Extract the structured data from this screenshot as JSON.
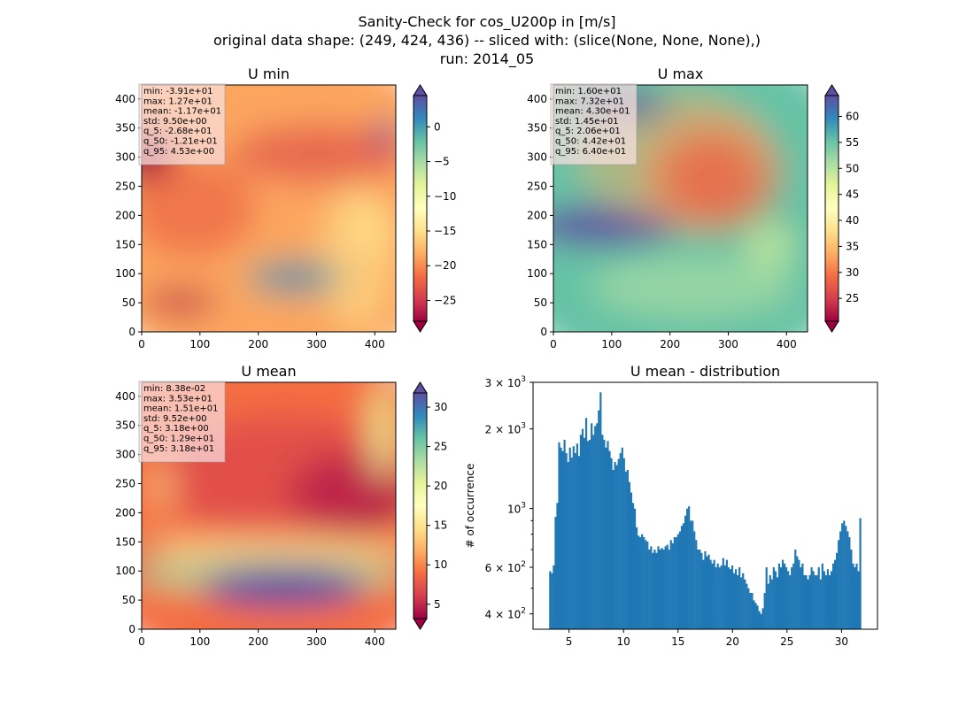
{
  "figure": {
    "title_lines": [
      "Sanity-Check for cos_U200p in [m/s]",
      "original data shape: (249, 424, 436) -- sliced with: (slice(None, None, None),)",
      "run: 2014_05"
    ]
  },
  "chart_data": [
    {
      "type": "heatmap",
      "title": "U min",
      "xlim": [
        0,
        436
      ],
      "ylim": [
        0,
        424
      ],
      "xticks": [
        "0",
        "100",
        "200",
        "300",
        "400"
      ],
      "yticks": [
        "0",
        "50",
        "100",
        "150",
        "200",
        "250",
        "300",
        "350",
        "400"
      ],
      "colormap": "Spectral",
      "colorbar": {
        "range": [
          -28,
          4.5
        ],
        "ticks": [
          "-25",
          "-20",
          "-15",
          "-10",
          "-5",
          "0"
        ],
        "extend": "both"
      },
      "stats": [
        "min: -3.91e+01",
        "max: 1.27e+01",
        "mean: -1.17e+01",
        "std: 9.50e+00",
        "q_5: -2.68e+01",
        "q_50: -1.21e+01",
        "q_95: 4.53e+00"
      ]
    },
    {
      "type": "heatmap",
      "title": "U max",
      "xlim": [
        0,
        436
      ],
      "ylim": [
        0,
        424
      ],
      "xticks": [
        "0",
        "100",
        "200",
        "300",
        "400"
      ],
      "yticks": [
        "0",
        "50",
        "100",
        "150",
        "200",
        "250",
        "300",
        "350",
        "400"
      ],
      "colormap": "Spectral",
      "colorbar": {
        "range": [
          20.6,
          64
        ],
        "ticks": [
          "25",
          "30",
          "35",
          "40",
          "45",
          "50",
          "55",
          "60"
        ],
        "extend": "both"
      },
      "stats": [
        "min: 1.60e+01",
        "max: 7.32e+01",
        "mean: 4.30e+01",
        "std: 1.45e+01",
        "q_5: 2.06e+01",
        "q_50: 4.42e+01",
        "q_95: 6.40e+01"
      ]
    },
    {
      "type": "heatmap",
      "title": "U mean",
      "xlim": [
        0,
        436
      ],
      "ylim": [
        0,
        424
      ],
      "xticks": [
        "0",
        "100",
        "200",
        "300",
        "400"
      ],
      "yticks": [
        "0",
        "50",
        "100",
        "150",
        "200",
        "250",
        "300",
        "350",
        "400"
      ],
      "colormap": "Spectral",
      "colorbar": {
        "range": [
          3.18,
          31.8
        ],
        "ticks": [
          "5",
          "10",
          "15",
          "20",
          "25",
          "30"
        ],
        "extend": "both"
      },
      "stats": [
        "min: 8.38e-02",
        "max: 3.53e+01",
        "mean: 1.51e+01",
        "std: 9.52e+00",
        "q_5: 3.18e+00",
        "q_50: 1.29e+01",
        "q_95: 3.18e+01"
      ]
    },
    {
      "type": "bar",
      "title": "U mean - distribution",
      "ylabel": "# of occurrence",
      "xlabel": "",
      "xlim": [
        1.7,
        33.3
      ],
      "ylim": [
        350,
        3000
      ],
      "yscale": "log",
      "xticks": [
        "5",
        "10",
        "15",
        "20",
        "25",
        "30"
      ],
      "yticks_major": [
        {
          "base": "4",
          "exp": "2",
          "v": 400
        },
        {
          "base": "6",
          "exp": "2",
          "v": 600
        },
        {
          "base": "",
          "exp": "3",
          "v": 1000
        },
        {
          "base": "2",
          "exp": "3",
          "v": 2000
        },
        {
          "base": "3",
          "exp": "3",
          "v": 3000
        }
      ],
      "color": "#1f77b4",
      "bin_start": 3.18,
      "bin_end": 31.8,
      "counts": [
        580,
        570,
        610,
        930,
        1050,
        1780,
        1700,
        1650,
        1820,
        1620,
        1500,
        1700,
        1560,
        1720,
        1620,
        1760,
        1580,
        1900,
        2000,
        1850,
        2200,
        1800,
        1820,
        2100,
        1900,
        2050,
        2100,
        2350,
        2750,
        1900,
        1820,
        1700,
        1800,
        1650,
        1550,
        1400,
        1500,
        1460,
        1540,
        1620,
        1700,
        1550,
        1380,
        1400,
        1260,
        1150,
        1050,
        1000,
        850,
        790,
        780,
        800,
        780,
        760,
        750,
        700,
        720,
        680,
        700,
        680,
        720,
        700,
        710,
        700,
        720,
        730,
        700,
        760,
        740,
        780,
        780,
        800,
        820,
        860,
        880,
        940,
        1000,
        1020,
        900,
        900,
        820,
        760,
        700,
        700,
        680,
        640,
        690,
        660,
        670,
        640,
        620,
        640,
        600,
        620,
        600,
        610,
        650,
        610,
        640,
        600,
        590,
        610,
        570,
        590,
        560,
        600,
        550,
        570,
        540,
        520,
        500,
        480,
        480,
        450,
        440,
        430,
        410,
        400,
        420,
        480,
        600,
        520,
        560,
        540,
        600,
        580,
        550,
        620,
        600,
        640,
        620,
        600,
        580,
        560,
        600,
        620,
        700,
        660,
        640,
        600,
        620,
        560,
        560,
        540,
        560,
        600,
        580,
        560,
        560,
        600,
        540,
        620,
        580,
        560,
        590,
        560,
        580,
        620,
        640,
        680,
        760,
        820,
        880,
        900,
        860,
        820,
        780,
        700,
        620,
        600,
        620,
        580,
        920
      ]
    }
  ]
}
